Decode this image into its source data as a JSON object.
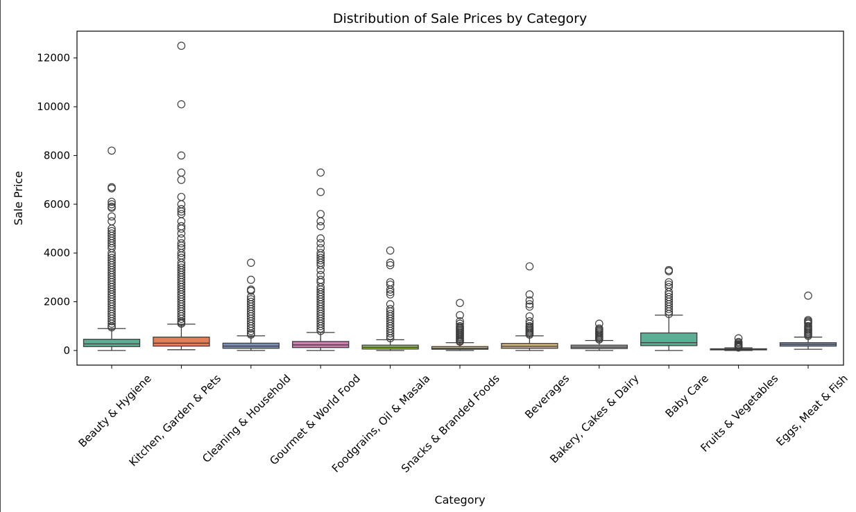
{
  "chart_data": {
    "type": "box",
    "title": "Distribution of Sale Prices by Category",
    "xlabel": "Category",
    "ylabel": "Sale Price",
    "ylim": [
      -600,
      13100
    ],
    "yticks": [
      0,
      2000,
      4000,
      6000,
      8000,
      10000,
      12000
    ],
    "grid": false,
    "categories": [
      "Beauty & Hygiene",
      "Kitchen, Garden & Pets",
      "Cleaning & Household",
      "Gourmet & World Food",
      "Foodgrains, Oil & Masala",
      "Snacks & Branded Foods",
      "Beverages",
      "Bakery, Cakes & Dairy",
      "Baby Care",
      "Fruits & Vegetables",
      "Eggs, Meat & Fish"
    ],
    "colors": [
      "#66c2a5",
      "#fc8d62",
      "#8da0cb",
      "#e78ac3",
      "#a6d854",
      "#ffd92f",
      "#e5c494",
      "#b3b3b3",
      "#66c2a5",
      "#fc8d62",
      "#8da0cb"
    ],
    "boxes": [
      {
        "whisker_low": 0,
        "q1": 160,
        "median": 270,
        "q3": 460,
        "whisker_high": 900,
        "outliers": [
          8200,
          6700,
          6650,
          6100,
          6000,
          5900,
          5850,
          5500,
          5300,
          5000,
          4900,
          4800,
          4700,
          4600,
          4500,
          4400,
          4300,
          4200,
          4000,
          3900,
          3800,
          3700,
          3600,
          3500,
          3400,
          3300,
          3200,
          3100,
          3000,
          2900,
          2800,
          2700,
          2600,
          2500,
          2400,
          2300,
          2200,
          2100,
          2000,
          1900,
          1800,
          1700,
          1600,
          1500,
          1400,
          1300,
          1200,
          1100,
          1000,
          950
        ]
      },
      {
        "whisker_low": 30,
        "q1": 180,
        "median": 300,
        "q3": 550,
        "whisker_high": 1080,
        "outliers": [
          12500,
          10100,
          8000,
          7300,
          7000,
          6300,
          6000,
          5800,
          5700,
          5600,
          5300,
          5100,
          5000,
          4800,
          4600,
          4400,
          4300,
          4200,
          4000,
          3900,
          3800,
          3600,
          3500,
          3400,
          3300,
          3200,
          3100,
          3000,
          2900,
          2800,
          2700,
          2600,
          2500,
          2400,
          2300,
          2200,
          2100,
          2000,
          1900,
          1800,
          1700,
          1600,
          1500,
          1400,
          1300,
          1200,
          1150,
          1100
        ]
      },
      {
        "whisker_low": 0,
        "q1": 90,
        "median": 180,
        "q3": 300,
        "whisker_high": 600,
        "outliers": [
          3600,
          2900,
          2500,
          2450,
          2200,
          2100,
          2000,
          1900,
          1800,
          1700,
          1600,
          1500,
          1400,
          1300,
          1200,
          1100,
          1000,
          900,
          800,
          700,
          650
        ]
      },
      {
        "whisker_low": 0,
        "q1": 120,
        "median": 230,
        "q3": 370,
        "whisker_high": 740,
        "outliers": [
          7300,
          6500,
          5600,
          5300,
          5100,
          4600,
          4400,
          4200,
          4000,
          3900,
          3800,
          3700,
          3600,
          3500,
          3300,
          3100,
          2900,
          2800,
          2600,
          2500,
          2400,
          2300,
          2200,
          2100,
          2000,
          1900,
          1800,
          1700,
          1600,
          1500,
          1400,
          1300,
          1200,
          1100,
          1000,
          900,
          800
        ]
      },
      {
        "whisker_low": 0,
        "q1": 60,
        "median": 130,
        "q3": 220,
        "whisker_high": 440,
        "outliers": [
          4100,
          3600,
          3500,
          2800,
          2700,
          2500,
          2400,
          2300,
          1900,
          1700,
          1600,
          1500,
          1400,
          1300,
          1200,
          1100,
          1000,
          900,
          800,
          700,
          600,
          500
        ]
      },
      {
        "whisker_low": 0,
        "q1": 50,
        "median": 90,
        "q3": 160,
        "whisker_high": 320,
        "outliers": [
          1950,
          1450,
          1200,
          1100,
          1000,
          950,
          900,
          850,
          800,
          750,
          700,
          650,
          600,
          550,
          500,
          450,
          400,
          360
        ]
      },
      {
        "whisker_low": 0,
        "q1": 90,
        "median": 170,
        "q3": 290,
        "whisker_high": 600,
        "outliers": [
          3450,
          2300,
          2050,
          1900,
          1800,
          1400,
          1200,
          1100,
          1000,
          950,
          900,
          850,
          800,
          750,
          700,
          650
        ]
      },
      {
        "whisker_low": 0,
        "q1": 80,
        "median": 140,
        "q3": 220,
        "whisker_high": 410,
        "outliers": [
          1100,
          900,
          850,
          800,
          750,
          700,
          650,
          600,
          550,
          500,
          450
        ]
      },
      {
        "whisker_low": 0,
        "q1": 200,
        "median": 320,
        "q3": 720,
        "whisker_high": 1450,
        "outliers": [
          3300,
          3250,
          2800,
          2700,
          2600,
          2400,
          2300,
          2200,
          2100,
          2000,
          1900,
          1800,
          1700,
          1600,
          1500
        ]
      },
      {
        "whisker_low": 0,
        "q1": 25,
        "median": 45,
        "q3": 70,
        "whisker_high": 110,
        "outliers": [
          500,
          350,
          300,
          250,
          220,
          200,
          180,
          160,
          140,
          120
        ]
      },
      {
        "whisker_low": 50,
        "q1": 180,
        "median": 250,
        "q3": 320,
        "whisker_high": 550,
        "outliers": [
          2250,
          1250,
          1200,
          1150,
          1100,
          1000,
          950,
          900,
          850,
          800,
          750,
          700,
          650,
          600
        ]
      }
    ]
  }
}
